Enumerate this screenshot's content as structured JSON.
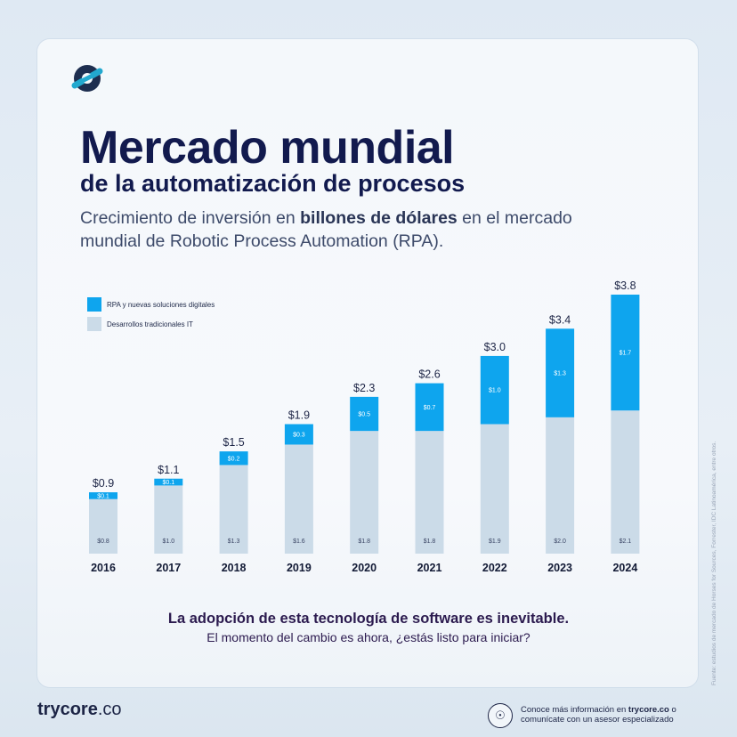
{
  "header": {
    "title": "Mercado mundial",
    "title_line2": "de la automatización de procesos",
    "subtitle_part1": "Crecimiento de inversión en ",
    "subtitle_bold": "billones de dólares",
    "subtitle_part2": " en el mercado mundial de Robotic Process Automation (RPA)."
  },
  "legend": {
    "items": [
      {
        "label": "RPA y nuevas soluciones digitales",
        "color": "#0ea5ee"
      },
      {
        "label": "Desarrollos tradicionales IT",
        "color": "#cbdbe8"
      }
    ]
  },
  "chart_data": {
    "type": "bar",
    "stacked": true,
    "categories": [
      "2016",
      "2017",
      "2018",
      "2019",
      "2020",
      "2021",
      "2022",
      "2023",
      "2024"
    ],
    "series": [
      {
        "name": "Desarrollos tradicionales IT",
        "values": [
          0.8,
          1.0,
          1.3,
          1.6,
          1.8,
          1.8,
          1.9,
          2.0,
          2.1
        ],
        "color": "#cbdbe8"
      },
      {
        "name": "RPA y nuevas soluciones digitales",
        "values": [
          0.1,
          0.1,
          0.2,
          0.3,
          0.5,
          0.7,
          1.0,
          1.3,
          1.7
        ],
        "color": "#0ea5ee"
      }
    ],
    "segment_labels_bottom": [
      "$0.8",
      "$1.0",
      "$1.3",
      "$1.6",
      "$1.8",
      "$1.8",
      "$1.9",
      "$2.0",
      "$2.1"
    ],
    "segment_labels_top": [
      "$0.1",
      "$0.1",
      "$0.2",
      "$0.3",
      "$0.5",
      "$0.7",
      "$1.0",
      "$1.3",
      "$1.7"
    ],
    "total_labels": [
      "$0.9",
      "$1.1",
      "$1.5",
      "$1.9",
      "$2.3",
      "$2.6",
      "$3.0",
      "$3.4",
      "$3.8"
    ],
    "ylim": [
      0,
      3.8
    ],
    "grid": false,
    "legend_position": "top-left"
  },
  "cta": {
    "headline": "La adopción de esta tecnología de software es inevitable.",
    "subline": "El momento del cambio es ahora, ¿estás listo para iniciar?"
  },
  "source_note": "Fuente: estudios de mercado de Horses for Sources, Forrester, IDC Latinoamérica, entre otros.",
  "footer": {
    "brand": "trycore",
    "brand_suffix": ".co",
    "info_part1": "Conoce más información en ",
    "info_bold": "trycore.co",
    "info_part2": " o comunícate con un asesor especializado",
    "icon": "headset-icon"
  },
  "colors": {
    "title": "#121a4e",
    "rpa": "#0ea5ee",
    "traditional": "#cbdbe8",
    "logo": "#1a9fc6"
  }
}
